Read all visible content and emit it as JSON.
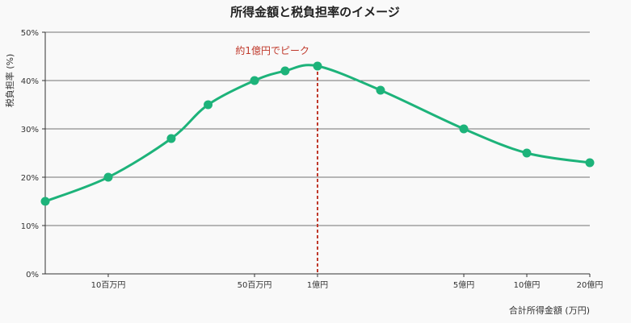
{
  "chart_data": {
    "type": "line",
    "title": "所得金額と税負担率のイメージ",
    "xlabel": "合計所得金額 (万円)",
    "ylabel": "税負担率 (%)",
    "x_scale": "log",
    "xlim": [
      500,
      200000
    ],
    "ylim": [
      0,
      50
    ],
    "y_ticks": [
      0,
      10,
      20,
      30,
      40,
      50
    ],
    "y_tick_labels": [
      "0%",
      "10%",
      "20%",
      "30%",
      "40%",
      "50%"
    ],
    "x_ticks": [
      1000,
      5000,
      10000,
      50000,
      100000,
      200000
    ],
    "x_tick_labels": [
      "10百万円",
      "50百万円",
      "1億円",
      "5億円",
      "10億円",
      "20億円"
    ],
    "grid": "horizontal",
    "series": [
      {
        "color": "#1db37a",
        "x": [
          500,
          1000,
          2000,
          3000,
          5000,
          7000,
          10000,
          20000,
          50000,
          100000,
          200000
        ],
        "y": [
          15,
          20,
          28,
          35,
          40,
          42,
          43,
          38,
          30,
          25,
          23
        ]
      }
    ],
    "annotations": [
      {
        "x": 10000,
        "text": "約1億円でピーク",
        "color": "#c0392b",
        "style": "dashed-vertical"
      }
    ]
  }
}
